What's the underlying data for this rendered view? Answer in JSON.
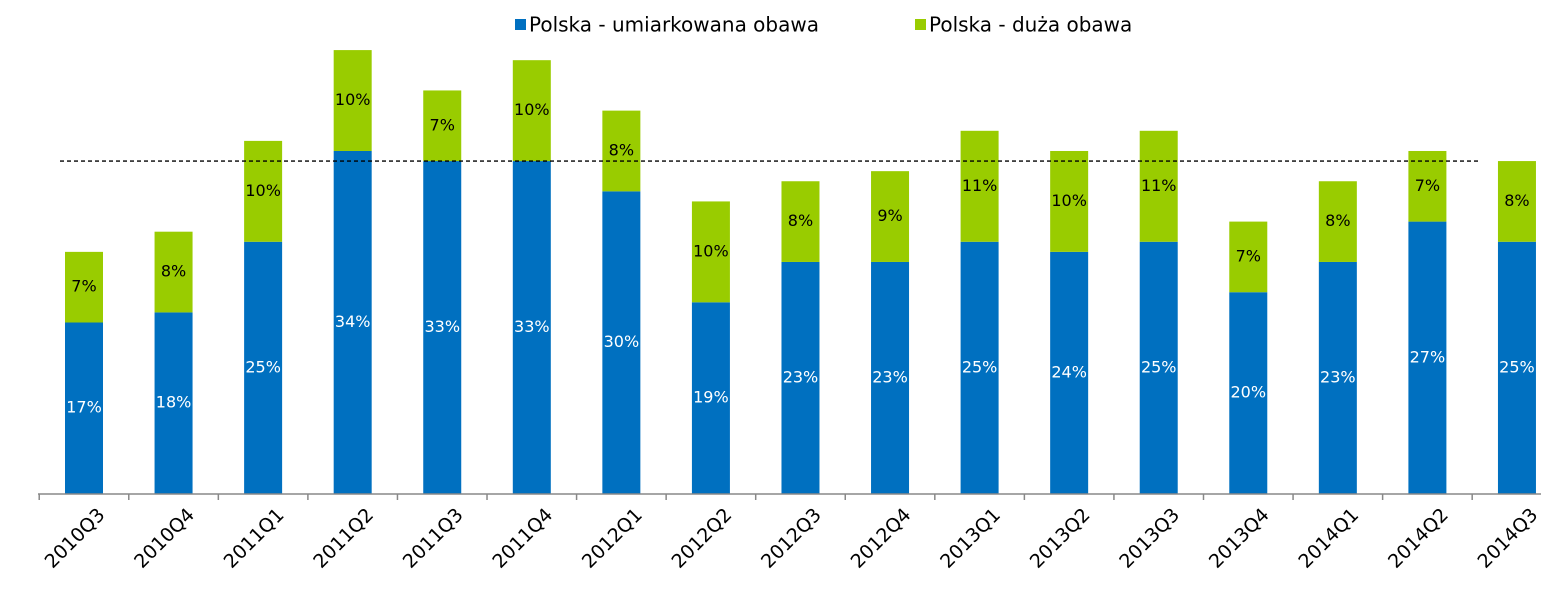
{
  "chart_data": {
    "type": "stacked_bar",
    "categories": [
      "2010Q3",
      "2010Q4",
      "2011Q1",
      "2011Q2",
      "2011Q3",
      "2011Q4",
      "2012Q1",
      "2012Q2",
      "2012Q3",
      "2012Q4",
      "2013Q1",
      "2013Q2",
      "2013Q3",
      "2013Q4",
      "2014Q1",
      "2014Q2",
      "2014Q3"
    ],
    "series": [
      {
        "name": "Polska - umiarkowana obawa",
        "color": "#0070c0",
        "values": [
          17,
          18,
          25,
          34,
          33,
          33,
          30,
          19,
          23,
          23,
          25,
          24,
          25,
          20,
          23,
          27,
          25
        ],
        "value_labels": [
          "17%",
          "18%",
          "25%",
          "34%",
          "33%",
          "33%",
          "30%",
          "19%",
          "23%",
          "23%",
          "25%",
          "24%",
          "25%",
          "20%",
          "23%",
          "27%",
          "25%"
        ]
      },
      {
        "name": "Polska - duża obawa",
        "color": "#99cc00",
        "values": [
          7,
          8,
          10,
          10,
          7,
          10,
          8,
          10,
          8,
          9,
          11,
          10,
          11,
          7,
          8,
          7,
          8
        ],
        "value_labels": [
          "7%",
          "8%",
          "10%",
          "10%",
          "7%",
          "10%",
          "8%",
          "10%",
          "8%",
          "9%",
          "11%",
          "10%",
          "11%",
          "7%",
          "8%",
          "7%",
          "8%"
        ]
      }
    ],
    "ylim": [
      0,
      45
    ],
    "reference_line": 33,
    "legend": "top"
  }
}
